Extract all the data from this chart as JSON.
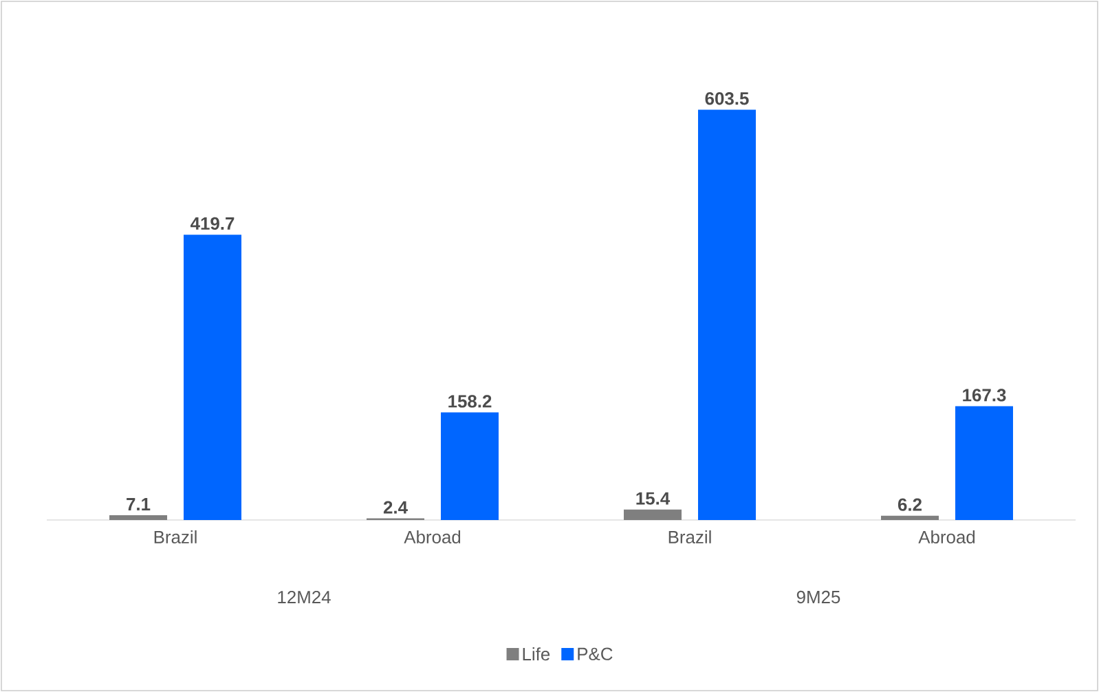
{
  "chart_data": {
    "type": "bar",
    "categories": [
      "Brazil",
      "Abroad",
      "Brazil",
      "Abroad"
    ],
    "series": [
      {
        "name": "Life",
        "color": "#7f7f7f",
        "values": [
          7.1,
          2.4,
          15.4,
          6.2
        ]
      },
      {
        "name": "P&C",
        "color": "#0066ff",
        "values": [
          419.7,
          158.2,
          603.5,
          167.3
        ]
      }
    ],
    "annotations": [
      "12M24",
      "9M25"
    ],
    "data_labels": true,
    "legend": "bottom"
  }
}
